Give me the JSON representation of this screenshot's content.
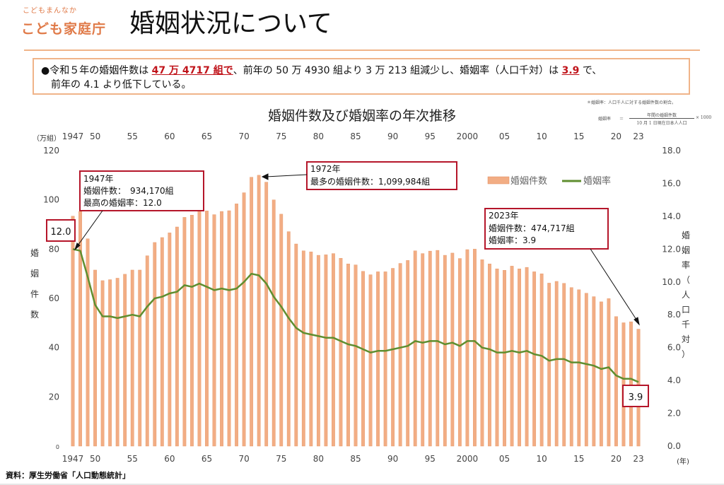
{
  "logo": {
    "small": "こどもまんなか",
    "main": "こども家庭庁"
  },
  "page_title": "婚姻状況について",
  "summary": {
    "p1": "●令和５年の婚姻件数は ",
    "hl1": "47 万 4717 組で",
    "p2": "、前年の 50 万 4930 組より 3 万 213 組減少し、婚姻率（人口千対）は ",
    "hl2": "3.9",
    "p3": " で、",
    "line2": "前年の 4.1 より低下している。"
  },
  "formula": {
    "note": "＊婚姻率：人口千人に対する婚姻件数の割合。",
    "lhs": "婚姻率",
    "eq": "＝",
    "numerator": "年間の婚姻件数",
    "denominator": "10 月 1 日現在日本人人口",
    "multiplier": "× 1000"
  },
  "source": "資料：厚生労働省「人口動態統計」",
  "chart_data": {
    "type": "bar+line",
    "title": "婚姻件数及び婚姻率の年次推移",
    "left_unit": "（万組）",
    "left_label": [
      "婚",
      "姻",
      "件",
      "数"
    ],
    "right_label": [
      "婚",
      "姻",
      "率",
      "（",
      "人",
      "口",
      "千",
      "対",
      "）"
    ],
    "x_unit": "(年)",
    "left_ylim": [
      0,
      120
    ],
    "left_ticks": [
      0,
      20,
      40,
      60,
      80,
      100,
      120
    ],
    "right_ylim": [
      0,
      18
    ],
    "right_ticks": [
      "0.0",
      "2.0",
      "4.0",
      "6.0",
      "8.0",
      "10.0",
      "12.0",
      "14.0",
      "16.0",
      "18.0"
    ],
    "x_tick_labels": [
      {
        "year": 1947,
        "label": "1947"
      },
      {
        "year": 1950,
        "label": "50"
      },
      {
        "year": 1955,
        "label": "55"
      },
      {
        "year": 1960,
        "label": "60"
      },
      {
        "year": 1965,
        "label": "65"
      },
      {
        "year": 1970,
        "label": "70"
      },
      {
        "year": 1975,
        "label": "75"
      },
      {
        "year": 1980,
        "label": "80"
      },
      {
        "year": 1985,
        "label": "85"
      },
      {
        "year": 1990,
        "label": "90"
      },
      {
        "year": 1995,
        "label": "95"
      },
      {
        "year": 2000,
        "label": "2000"
      },
      {
        "year": 2005,
        "label": "05"
      },
      {
        "year": 2010,
        "label": "10"
      },
      {
        "year": 2015,
        "label": "15"
      },
      {
        "year": 2020,
        "label": "20"
      },
      {
        "year": 2023,
        "label": "23"
      }
    ],
    "legend": {
      "bar": "婚姻件数",
      "line": "婚姻率",
      "position": "top-right"
    },
    "series": [
      {
        "name": "婚姻件数",
        "unit": "万組",
        "years": [
          1947,
          1948,
          1949,
          1950,
          1951,
          1952,
          1953,
          1954,
          1955,
          1956,
          1957,
          1958,
          1959,
          1960,
          1961,
          1962,
          1963,
          1964,
          1965,
          1966,
          1967,
          1968,
          1969,
          1970,
          1971,
          1972,
          1973,
          1974,
          1975,
          1976,
          1977,
          1978,
          1979,
          1980,
          1981,
          1982,
          1983,
          1984,
          1985,
          1986,
          1987,
          1988,
          1989,
          1990,
          1991,
          1992,
          1993,
          1994,
          1995,
          1996,
          1997,
          1998,
          1999,
          2000,
          2001,
          2002,
          2003,
          2004,
          2005,
          2006,
          2007,
          2008,
          2009,
          2010,
          2011,
          2012,
          2013,
          2014,
          2015,
          2016,
          2017,
          2018,
          2019,
          2020,
          2021,
          2022,
          2023
        ],
        "values": [
          93.4,
          95.3,
          84.2,
          71.5,
          67.2,
          67.6,
          68.2,
          69.8,
          71.5,
          71.5,
          77.3,
          82.7,
          84.7,
          86.6,
          89.0,
          92.9,
          93.8,
          96.4,
          95.5,
          94.0,
          95.3,
          95.6,
          98.4,
          102.9,
          109.2,
          110.0,
          107.2,
          100.0,
          94.2,
          87.1,
          82.1,
          79.3,
          78.9,
          77.5,
          77.7,
          78.2,
          76.3,
          74.0,
          73.6,
          71.0,
          69.6,
          70.8,
          70.8,
          72.2,
          74.2,
          75.4,
          79.3,
          78.2,
          79.2,
          79.5,
          77.5,
          78.4,
          76.2,
          79.8,
          80.0,
          75.7,
          74.0,
          72.0,
          71.4,
          73.1,
          72.0,
          72.6,
          70.8,
          70.0,
          66.2,
          66.9,
          66.1,
          64.4,
          63.5,
          62.1,
          60.7,
          58.6,
          59.9,
          52.6,
          50.1,
          50.5,
          47.5
        ]
      },
      {
        "name": "婚姻率",
        "unit": "人口千対",
        "years": [
          1947,
          1948,
          1949,
          1950,
          1951,
          1952,
          1953,
          1954,
          1955,
          1956,
          1957,
          1958,
          1959,
          1960,
          1961,
          1962,
          1963,
          1964,
          1965,
          1966,
          1967,
          1968,
          1969,
          1970,
          1971,
          1972,
          1973,
          1974,
          1975,
          1976,
          1977,
          1978,
          1979,
          1980,
          1981,
          1982,
          1983,
          1984,
          1985,
          1986,
          1987,
          1988,
          1989,
          1990,
          1991,
          1992,
          1993,
          1994,
          1995,
          1996,
          1997,
          1998,
          1999,
          2000,
          2001,
          2002,
          2003,
          2004,
          2005,
          2006,
          2007,
          2008,
          2009,
          2010,
          2011,
          2012,
          2013,
          2014,
          2015,
          2016,
          2017,
          2018,
          2019,
          2020,
          2021,
          2022,
          2023
        ],
        "values": [
          12.0,
          11.9,
          10.3,
          8.6,
          7.9,
          7.9,
          7.8,
          7.9,
          8.0,
          7.9,
          8.5,
          9.0,
          9.1,
          9.3,
          9.4,
          9.8,
          9.7,
          9.9,
          9.7,
          9.5,
          9.6,
          9.5,
          9.6,
          10.0,
          10.5,
          10.4,
          9.9,
          9.1,
          8.5,
          7.8,
          7.2,
          6.9,
          6.8,
          6.7,
          6.6,
          6.6,
          6.4,
          6.2,
          6.1,
          5.9,
          5.7,
          5.8,
          5.8,
          5.9,
          6.0,
          6.1,
          6.4,
          6.3,
          6.4,
          6.4,
          6.2,
          6.3,
          6.1,
          6.4,
          6.4,
          6.0,
          5.9,
          5.7,
          5.7,
          5.8,
          5.7,
          5.8,
          5.6,
          5.5,
          5.2,
          5.3,
          5.3,
          5.1,
          5.1,
          5.0,
          4.9,
          4.7,
          4.8,
          4.3,
          4.1,
          4.1,
          3.9
        ]
      }
    ],
    "annotations": [
      {
        "id": "a1947",
        "year_label": "1947年",
        "line1": "婚姻件数：　934,170組",
        "line2": "最高の婚姻率：12.0"
      },
      {
        "id": "a1972",
        "year_label": "1972年",
        "line1": "最多の婚姻件数：1,099,984組"
      },
      {
        "id": "a2023",
        "year_label": "2023年",
        "line1": "婚姻件数：474,717組",
        "line2": "婚姻率：3.9"
      }
    ],
    "value_callouts": [
      {
        "id": "start",
        "text": "12.0"
      },
      {
        "id": "end",
        "text": "3.9"
      }
    ]
  }
}
